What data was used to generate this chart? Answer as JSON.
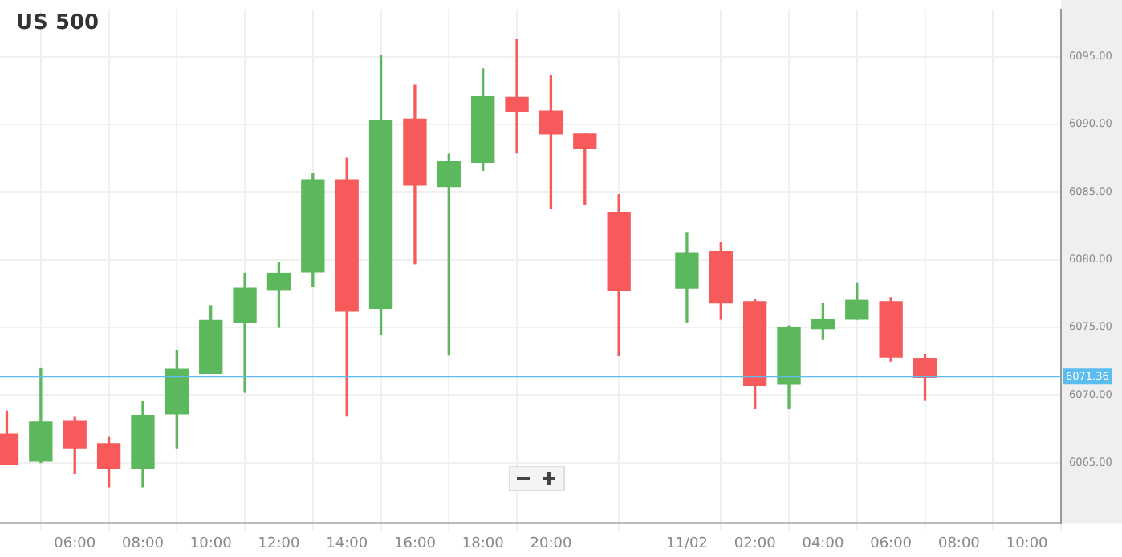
{
  "chart_data": {
    "type": "candlestick",
    "title": "US 500",
    "x": [
      "--02-10T04:00",
      "--02-10T05:00",
      "--02-10T06:00",
      "--02-10T07:00",
      "--02-10T08:00",
      "--02-10T09:00",
      "--02-10T10:00",
      "--02-10T11:00",
      "--02-10T12:00",
      "--02-10T13:00",
      "--02-10T14:00",
      "--02-10T15:00",
      "--02-10T16:00",
      "--02-10T17:00",
      "--02-10T18:00",
      "--02-10T19:00",
      "--02-10T20:00",
      "--02-10T21:00",
      "--02-10T22:00",
      "--02-11T00:00",
      "--02-11T01:00",
      "--02-11T02:00",
      "--02-11T03:00",
      "--02-11T04:00",
      "--02-11T05:00",
      "--02-11T06:00",
      "--02-11T07:00"
    ],
    "ohlc": [
      [
        6067.1,
        6068.8,
        6064.9,
        6064.9
      ],
      [
        6065.1,
        6072.0,
        6065.0,
        6068.0
      ],
      [
        6068.1,
        6068.4,
        6064.2,
        6066.1
      ],
      [
        6066.4,
        6066.9,
        6063.2,
        6064.6
      ],
      [
        6064.6,
        6069.5,
        6063.2,
        6068.5
      ],
      [
        6068.6,
        6073.3,
        6066.1,
        6071.9
      ],
      [
        6071.6,
        6076.6,
        6071.6,
        6075.5
      ],
      [
        6075.4,
        6079.0,
        6070.2,
        6077.9
      ],
      [
        6077.8,
        6079.8,
        6075.0,
        6079.0
      ],
      [
        6079.1,
        6086.4,
        6078.0,
        6085.9
      ],
      [
        6085.9,
        6087.5,
        6068.5,
        6076.2
      ],
      [
        6076.4,
        6095.1,
        6074.5,
        6090.3
      ],
      [
        6090.4,
        6092.9,
        6079.7,
        6085.5
      ],
      [
        6085.4,
        6087.8,
        6073.0,
        6087.3
      ],
      [
        6087.2,
        6094.1,
        6086.6,
        6092.1
      ],
      [
        6092.0,
        6096.3,
        6087.9,
        6091.0
      ],
      [
        6091.0,
        6093.6,
        6083.8,
        6089.3
      ],
      [
        6089.3,
        6089.3,
        6084.1,
        6088.2
      ],
      [
        6083.5,
        6084.8,
        6072.9,
        6077.7
      ],
      [
        6077.9,
        6082.0,
        6075.4,
        6080.5
      ],
      [
        6080.6,
        6081.3,
        6075.6,
        6076.8
      ],
      [
        6076.9,
        6077.1,
        6069.0,
        6070.7
      ],
      [
        6070.8,
        6075.1,
        6069.0,
        6075.0
      ],
      [
        6074.9,
        6076.8,
        6074.1,
        6075.6
      ],
      [
        6075.6,
        6078.3,
        6075.6,
        6077.0
      ],
      [
        6076.9,
        6077.2,
        6072.5,
        6072.8
      ],
      [
        6072.7,
        6073.0,
        6069.6,
        6071.3
      ]
    ],
    "colors": [
      "#f75a5a",
      "#5cb85c",
      "#f75a5a",
      "#f75a5a",
      "#5cb85c",
      "#5cb85c",
      "#5cb85c",
      "#5cb85c",
      "#5cb85c",
      "#5cb85c",
      "#f75a5a",
      "#5cb85c",
      "#f75a5a",
      "#5cb85c",
      "#5cb85c",
      "#f75a5a",
      "#f75a5a",
      "#f75a5a",
      "#f75a5a",
      "#5cb85c",
      "#f75a5a",
      "#f75a5a",
      "#5cb85c",
      "#5cb85c",
      "#5cb85c",
      "#f75a5a",
      "#f75a5a"
    ],
    "xlim": [
      "--02-10T03:48",
      "--02-11T11:00"
    ],
    "xticks": [
      {
        "value": "--02-10T06:00",
        "label": "06:00"
      },
      {
        "value": "--02-10T08:00",
        "label": "08:00"
      },
      {
        "value": "--02-10T10:00",
        "label": "10:00"
      },
      {
        "value": "--02-10T12:00",
        "label": "12:00"
      },
      {
        "value": "--02-10T14:00",
        "label": "14:00"
      },
      {
        "value": "--02-10T16:00",
        "label": "16:00"
      },
      {
        "value": "--02-10T18:00",
        "label": "18:00"
      },
      {
        "value": "--02-10T20:00",
        "label": "20:00"
      },
      {
        "value": "--02-11T00:00",
        "label": "11/02"
      },
      {
        "value": "--02-11T02:00",
        "label": "02:00"
      },
      {
        "value": "--02-11T04:00",
        "label": "04:00"
      },
      {
        "value": "--02-11T06:00",
        "label": "06:00"
      },
      {
        "value": "--02-11T08:00",
        "label": "08:00"
      },
      {
        "value": "--02-11T10:00",
        "label": "10:00"
      }
    ],
    "ylim": [
      6060.5,
      6098.5
    ],
    "yticks": [
      {
        "value": 6065,
        "label": "6065.00"
      },
      {
        "value": 6070,
        "label": "6070.00"
      },
      {
        "value": 6075,
        "label": "6075.00"
      },
      {
        "value": 6080,
        "label": "6080.00"
      },
      {
        "value": 6085,
        "label": "6085.00"
      },
      {
        "value": 6090,
        "label": "6090.00"
      },
      {
        "value": 6095,
        "label": "6095.00"
      }
    ],
    "ref_lines": [
      {
        "axis": "y",
        "value": 6071.36,
        "label": "6071.36",
        "color": "#5bbcf0"
      }
    ],
    "grid": true,
    "legend": false
  }
}
